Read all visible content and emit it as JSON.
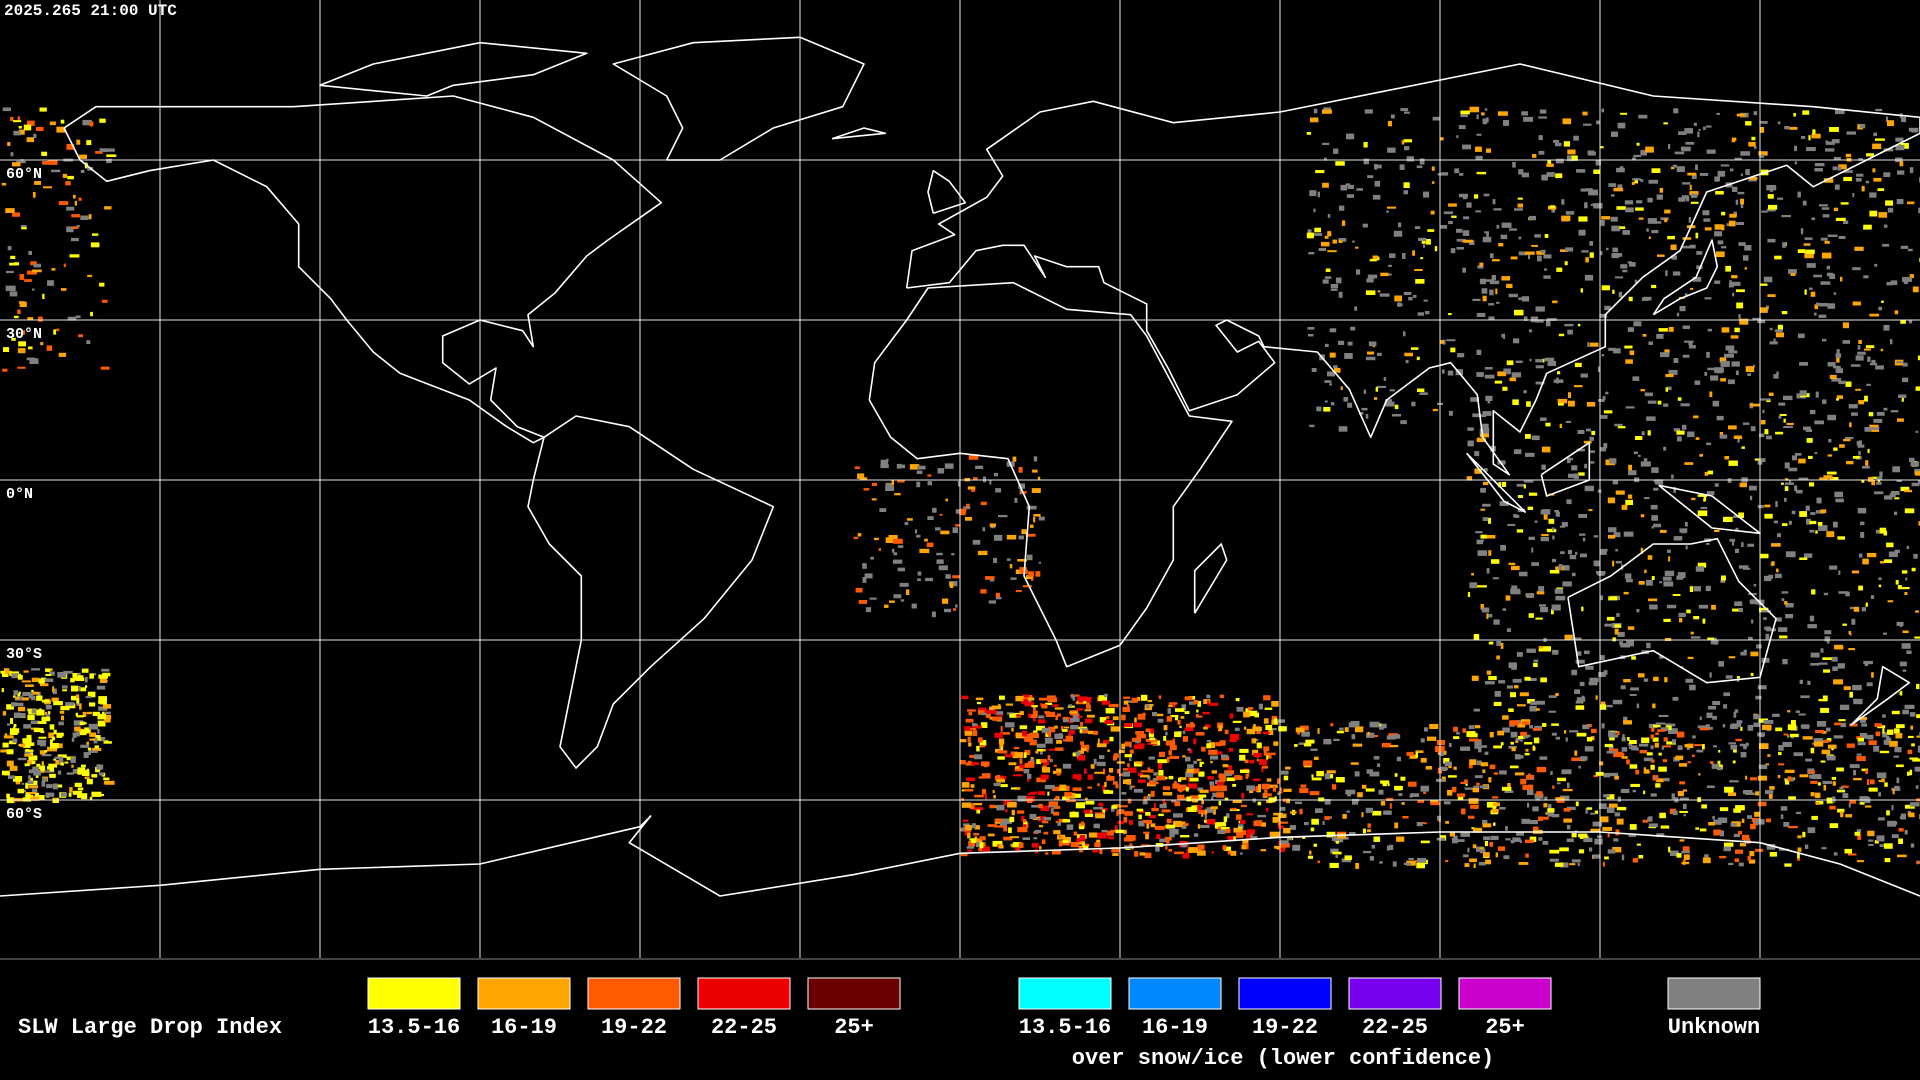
{
  "timestamp": "2025.265 21:00 UTC",
  "latitude_labels": [
    "60°N",
    "30°N",
    "0°N",
    "30°S",
    "60°S"
  ],
  "legend": {
    "title": "SLW Large Drop Index",
    "items": [
      {
        "label": "13.5-16",
        "color": "#ffff00"
      },
      {
        "label": "16-19",
        "color": "#ffa500"
      },
      {
        "label": "19-22",
        "color": "#ff5a00"
      },
      {
        "label": "22-25",
        "color": "#ee0000"
      },
      {
        "label": "25+",
        "color": "#6a0000"
      }
    ],
    "snow_ice_items": [
      {
        "label": "13.5-16",
        "color": "#00ffff"
      },
      {
        "label": "16-19",
        "color": "#0088ff"
      },
      {
        "label": "19-22",
        "color": "#0000ff"
      },
      {
        "label": "22-25",
        "color": "#7700ee"
      },
      {
        "label": "25+",
        "color": "#cc00cc"
      }
    ],
    "snow_ice_caption": "over snow/ice (lower confidence)",
    "unknown": {
      "label": "Unknown",
      "color": "#808080"
    }
  }
}
